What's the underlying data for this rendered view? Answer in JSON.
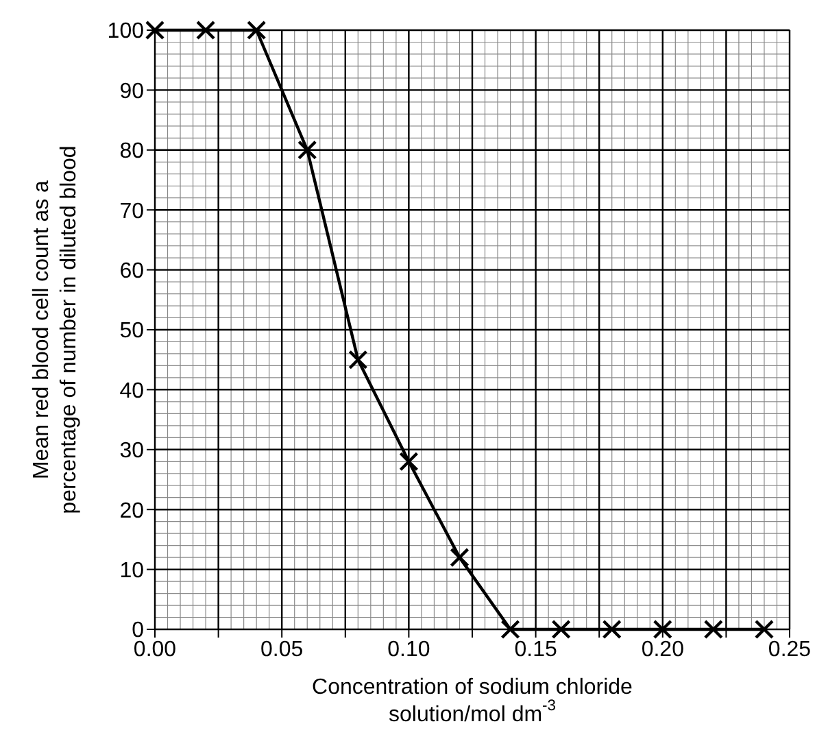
{
  "chart_data": {
    "type": "line",
    "xlabel": "Concentration of sodium chloride\nsolution/mol dm$^{-3}$",
    "ylabel": "Mean red blood cell count as a\npercentage of number in diluted blood",
    "x": [
      0,
      0.02,
      0.04,
      0.06,
      0.08,
      0.1,
      0.12,
      0.14,
      0.16,
      0.18,
      0.2,
      0.22,
      0.24
    ],
    "series": [
      {
        "color": "#000000",
        "values": [
          100,
          100,
          100,
          80,
          45,
          28,
          12,
          0,
          0,
          0,
          0,
          0,
          0
        ]
      }
    ],
    "xlim": [
      0,
      0.25
    ],
    "xticks": [
      {
        "value": 0,
        "label": "0.00"
      },
      {
        "value": 0.025,
        "label": null
      },
      {
        "value": 0.05,
        "label": "0.05"
      },
      {
        "value": 0.075,
        "label": null
      },
      {
        "value": 0.1,
        "label": "0.10"
      },
      {
        "value": 0.125,
        "label": null
      },
      {
        "value": 0.15,
        "label": "0.15"
      },
      {
        "value": 0.175,
        "label": null
      },
      {
        "value": 0.2,
        "label": "0.20"
      },
      {
        "value": 0.225,
        "label": null
      },
      {
        "value": 0.25,
        "label": "0.25"
      }
    ],
    "ylim": [
      0,
      100
    ],
    "yticks": [
      0,
      10,
      20,
      30,
      40,
      50,
      60,
      70,
      80,
      90,
      100
    ],
    "grid": true,
    "marker": "cross",
    "line_style": "solid"
  }
}
